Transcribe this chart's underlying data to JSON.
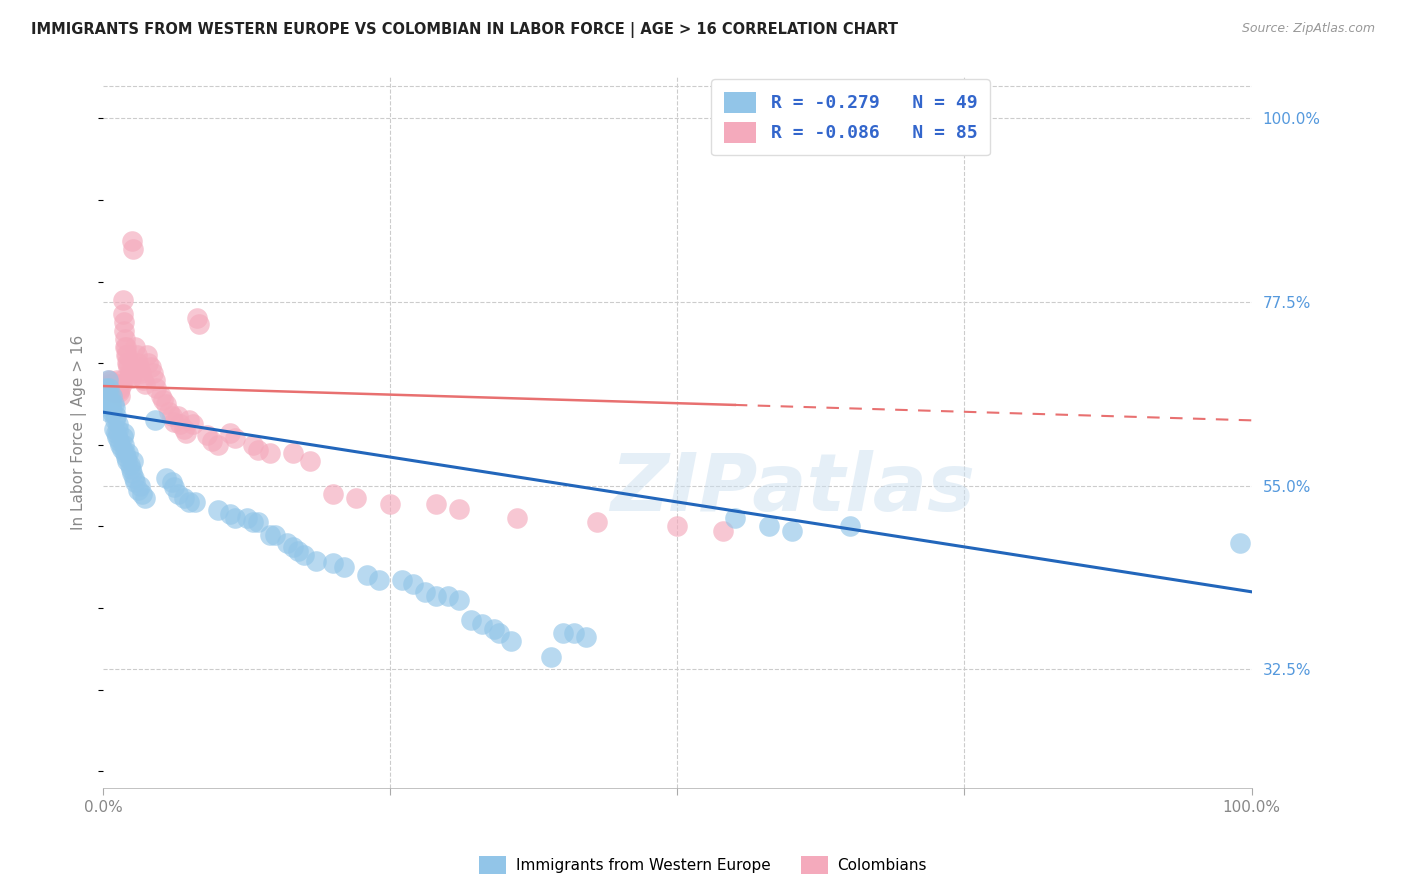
{
  "title": "IMMIGRANTS FROM WESTERN EUROPE VS COLOMBIAN IN LABOR FORCE | AGE > 16 CORRELATION CHART",
  "source": "Source: ZipAtlas.com",
  "ylabel": "In Labor Force | Age > 16",
  "watermark": "ZIPatlas",
  "xmin": 0.0,
  "xmax": 1.0,
  "ymin": 0.18,
  "ymax": 1.05,
  "xticks": [
    0.0,
    0.25,
    0.5,
    0.75,
    1.0
  ],
  "xticklabels": [
    "0.0%",
    "",
    "",
    "",
    "100.0%"
  ],
  "ylabel_right_ticks": [
    "100.0%",
    "77.5%",
    "55.0%",
    "32.5%"
  ],
  "ylabel_right_vals": [
    1.0,
    0.775,
    0.55,
    0.325
  ],
  "blue_color": "#92c5e8",
  "pink_color": "#f4aabc",
  "blue_line_color": "#2266bb",
  "pink_line_color": "#e87070",
  "blue_scatter": [
    [
      0.002,
      0.67
    ],
    [
      0.003,
      0.665
    ],
    [
      0.004,
      0.68
    ],
    [
      0.005,
      0.67
    ],
    [
      0.005,
      0.64
    ],
    [
      0.006,
      0.66
    ],
    [
      0.006,
      0.655
    ],
    [
      0.007,
      0.65
    ],
    [
      0.007,
      0.645
    ],
    [
      0.008,
      0.64
    ],
    [
      0.008,
      0.66
    ],
    [
      0.009,
      0.65
    ],
    [
      0.009,
      0.62
    ],
    [
      0.01,
      0.63
    ],
    [
      0.01,
      0.645
    ],
    [
      0.011,
      0.615
    ],
    [
      0.011,
      0.635
    ],
    [
      0.012,
      0.61
    ],
    [
      0.013,
      0.625
    ],
    [
      0.013,
      0.618
    ],
    [
      0.014,
      0.605
    ],
    [
      0.015,
      0.6
    ],
    [
      0.016,
      0.595
    ],
    [
      0.017,
      0.61
    ],
    [
      0.018,
      0.6
    ],
    [
      0.018,
      0.615
    ],
    [
      0.019,
      0.59
    ],
    [
      0.02,
      0.585
    ],
    [
      0.021,
      0.58
    ],
    [
      0.022,
      0.59
    ],
    [
      0.023,
      0.575
    ],
    [
      0.024,
      0.57
    ],
    [
      0.025,
      0.565
    ],
    [
      0.026,
      0.58
    ],
    [
      0.027,
      0.56
    ],
    [
      0.028,
      0.555
    ],
    [
      0.03,
      0.545
    ],
    [
      0.032,
      0.55
    ],
    [
      0.034,
      0.54
    ],
    [
      0.036,
      0.535
    ],
    [
      0.045,
      0.63
    ],
    [
      0.055,
      0.56
    ],
    [
      0.06,
      0.555
    ],
    [
      0.062,
      0.548
    ],
    [
      0.065,
      0.54
    ],
    [
      0.07,
      0.535
    ],
    [
      0.075,
      0.53
    ],
    [
      0.08,
      0.53
    ],
    [
      0.1,
      0.52
    ],
    [
      0.11,
      0.515
    ],
    [
      0.115,
      0.51
    ],
    [
      0.125,
      0.51
    ],
    [
      0.13,
      0.505
    ],
    [
      0.135,
      0.505
    ],
    [
      0.145,
      0.49
    ],
    [
      0.15,
      0.49
    ],
    [
      0.16,
      0.48
    ],
    [
      0.165,
      0.475
    ],
    [
      0.17,
      0.47
    ],
    [
      0.175,
      0.465
    ],
    [
      0.185,
      0.458
    ],
    [
      0.2,
      0.455
    ],
    [
      0.21,
      0.45
    ],
    [
      0.23,
      0.44
    ],
    [
      0.24,
      0.435
    ],
    [
      0.26,
      0.435
    ],
    [
      0.27,
      0.43
    ],
    [
      0.28,
      0.42
    ],
    [
      0.29,
      0.415
    ],
    [
      0.3,
      0.415
    ],
    [
      0.31,
      0.41
    ],
    [
      0.32,
      0.385
    ],
    [
      0.33,
      0.38
    ],
    [
      0.34,
      0.375
    ],
    [
      0.345,
      0.37
    ],
    [
      0.355,
      0.36
    ],
    [
      0.39,
      0.34
    ],
    [
      0.4,
      0.37
    ],
    [
      0.41,
      0.37
    ],
    [
      0.42,
      0.365
    ],
    [
      0.55,
      0.51
    ],
    [
      0.58,
      0.5
    ],
    [
      0.6,
      0.495
    ],
    [
      0.65,
      0.5
    ],
    [
      0.99,
      0.48
    ]
  ],
  "pink_scatter": [
    [
      0.002,
      0.67
    ],
    [
      0.003,
      0.672
    ],
    [
      0.004,
      0.668
    ],
    [
      0.005,
      0.675
    ],
    [
      0.005,
      0.68
    ],
    [
      0.006,
      0.67
    ],
    [
      0.006,
      0.678
    ],
    [
      0.007,
      0.673
    ],
    [
      0.007,
      0.668
    ],
    [
      0.008,
      0.671
    ],
    [
      0.008,
      0.665
    ],
    [
      0.009,
      0.668
    ],
    [
      0.009,
      0.672
    ],
    [
      0.01,
      0.67
    ],
    [
      0.01,
      0.665
    ],
    [
      0.011,
      0.668
    ],
    [
      0.011,
      0.673
    ],
    [
      0.012,
      0.67
    ],
    [
      0.012,
      0.68
    ],
    [
      0.013,
      0.675
    ],
    [
      0.013,
      0.668
    ],
    [
      0.014,
      0.665
    ],
    [
      0.014,
      0.672
    ],
    [
      0.015,
      0.668
    ],
    [
      0.015,
      0.66
    ],
    [
      0.016,
      0.675
    ],
    [
      0.016,
      0.68
    ],
    [
      0.017,
      0.778
    ],
    [
      0.017,
      0.76
    ],
    [
      0.018,
      0.75
    ],
    [
      0.018,
      0.74
    ],
    [
      0.019,
      0.73
    ],
    [
      0.019,
      0.72
    ],
    [
      0.02,
      0.72
    ],
    [
      0.02,
      0.71
    ],
    [
      0.021,
      0.7
    ],
    [
      0.021,
      0.71
    ],
    [
      0.022,
      0.7
    ],
    [
      0.022,
      0.695
    ],
    [
      0.023,
      0.69
    ],
    [
      0.023,
      0.685
    ],
    [
      0.024,
      0.688
    ],
    [
      0.024,
      0.682
    ],
    [
      0.025,
      0.85
    ],
    [
      0.026,
      0.84
    ],
    [
      0.028,
      0.72
    ],
    [
      0.029,
      0.71
    ],
    [
      0.03,
      0.7
    ],
    [
      0.031,
      0.695
    ],
    [
      0.032,
      0.69
    ],
    [
      0.033,
      0.688
    ],
    [
      0.035,
      0.68
    ],
    [
      0.036,
      0.675
    ],
    [
      0.038,
      0.71
    ],
    [
      0.039,
      0.7
    ],
    [
      0.042,
      0.695
    ],
    [
      0.043,
      0.688
    ],
    [
      0.045,
      0.68
    ],
    [
      0.046,
      0.67
    ],
    [
      0.05,
      0.66
    ],
    [
      0.052,
      0.655
    ],
    [
      0.055,
      0.65
    ],
    [
      0.057,
      0.64
    ],
    [
      0.06,
      0.635
    ],
    [
      0.062,
      0.628
    ],
    [
      0.065,
      0.635
    ],
    [
      0.067,
      0.625
    ],
    [
      0.07,
      0.62
    ],
    [
      0.072,
      0.615
    ],
    [
      0.075,
      0.63
    ],
    [
      0.078,
      0.625
    ],
    [
      0.082,
      0.755
    ],
    [
      0.083,
      0.748
    ],
    [
      0.09,
      0.612
    ],
    [
      0.095,
      0.605
    ],
    [
      0.1,
      0.6
    ],
    [
      0.11,
      0.615
    ],
    [
      0.115,
      0.608
    ],
    [
      0.13,
      0.6
    ],
    [
      0.135,
      0.594
    ],
    [
      0.145,
      0.59
    ],
    [
      0.165,
      0.59
    ],
    [
      0.18,
      0.58
    ],
    [
      0.2,
      0.54
    ],
    [
      0.22,
      0.535
    ],
    [
      0.25,
      0.527
    ],
    [
      0.29,
      0.528
    ],
    [
      0.31,
      0.522
    ],
    [
      0.36,
      0.51
    ],
    [
      0.43,
      0.505
    ],
    [
      0.5,
      0.5
    ],
    [
      0.54,
      0.495
    ]
  ],
  "blue_trendline_x": [
    0.0,
    1.0
  ],
  "blue_trendline_y": [
    0.64,
    0.42
  ],
  "pink_trendline_x": [
    0.0,
    1.0
  ],
  "pink_trendline_y": [
    0.672,
    0.63
  ]
}
